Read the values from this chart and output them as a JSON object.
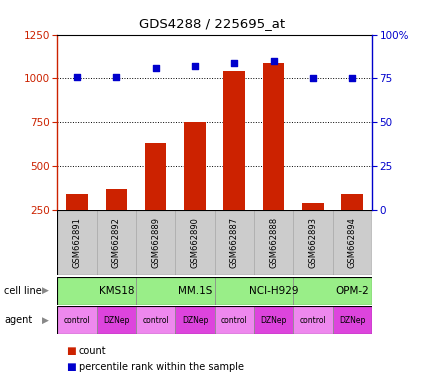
{
  "title": "GDS4288 / 225695_at",
  "samples": [
    "GSM662891",
    "GSM662892",
    "GSM662889",
    "GSM662890",
    "GSM662887",
    "GSM662888",
    "GSM662893",
    "GSM662894"
  ],
  "bar_values": [
    340,
    370,
    630,
    750,
    1040,
    1090,
    290,
    340
  ],
  "dot_values": [
    76,
    76,
    81,
    82,
    84,
    85,
    75,
    75
  ],
  "ylim_left": [
    250,
    1250
  ],
  "ylim_right": [
    0,
    100
  ],
  "yticks_left": [
    250,
    500,
    750,
    1000,
    1250
  ],
  "yticks_right": [
    0,
    25,
    50,
    75,
    100
  ],
  "ytick_labels_right": [
    "0",
    "25",
    "50",
    "75",
    "100%"
  ],
  "bar_color": "#cc2200",
  "dot_color": "#0000cc",
  "cell_lines": [
    "KMS18",
    "MM.1S",
    "NCI-H929",
    "OPM-2"
  ],
  "cell_line_color": "#99ee88",
  "cell_line_spans": [
    [
      0,
      2
    ],
    [
      2,
      4
    ],
    [
      4,
      6
    ],
    [
      6,
      8
    ]
  ],
  "agents": [
    "control",
    "DZNep",
    "control",
    "DZNep",
    "control",
    "DZNep",
    "control",
    "DZNep"
  ],
  "agent_color_control": "#ee88ee",
  "agent_color_dznep": "#dd44dd",
  "axis_left_color": "#cc2200",
  "axis_right_color": "#0000cc",
  "background_color": "#ffffff",
  "label_row1": "cell line",
  "label_row2": "agent",
  "legend_count": "count",
  "legend_pct": "percentile rank within the sample",
  "bar_width": 0.55,
  "sample_box_color": "#cccccc",
  "sample_box_edge": "#aaaaaa",
  "border_color": "#000000"
}
